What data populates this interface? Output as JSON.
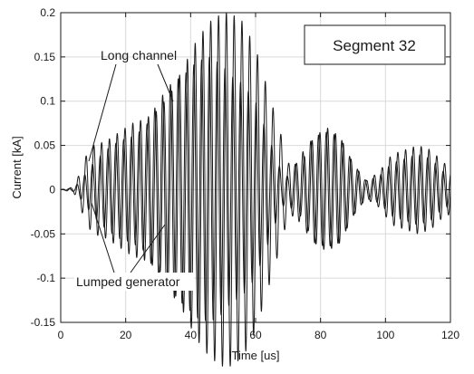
{
  "chart_data": {
    "type": "line",
    "xlabel": "Time [us]",
    "ylabel": "Current [kA]",
    "xlim": [
      0,
      120
    ],
    "ylim": [
      -0.15,
      0.2
    ],
    "xticks": [
      0,
      20,
      40,
      60,
      80,
      100,
      120
    ],
    "yticks": [
      -0.15,
      -0.1,
      -0.05,
      0,
      0.05,
      0.1,
      0.15,
      0.2
    ],
    "xtick_labels": [
      "0",
      "20",
      "40",
      "60",
      "80",
      "100",
      "120"
    ],
    "ytick_labels": [
      "-0.15",
      "-0.1",
      "-0.05",
      "0",
      "0.05",
      "0.1",
      "0.15",
      "0.2"
    ],
    "grid": true,
    "box_label": "Segment 32",
    "annotations": [
      {
        "text": "Long channel",
        "target": "series-1"
      },
      {
        "text": "Lumped generator",
        "target": "series-2"
      }
    ],
    "line_color": "#1a1a1a",
    "series": [
      {
        "name": "Long channel",
        "carrier_period_us": 2.4,
        "envelope_t": [
          0,
          4,
          6,
          8,
          10,
          14,
          18,
          22,
          26,
          30,
          34,
          38,
          42,
          46,
          50,
          52,
          56,
          60,
          64,
          68,
          70,
          74,
          78,
          82,
          86,
          90,
          94,
          98,
          102,
          106,
          110,
          114,
          118,
          120
        ],
        "envelope_amp": [
          0.0,
          0.003,
          0.02,
          0.04,
          0.05,
          0.055,
          0.065,
          0.075,
          0.08,
          0.09,
          0.11,
          0.14,
          0.17,
          0.19,
          0.2,
          0.2,
          0.19,
          0.16,
          0.11,
          0.06,
          0.03,
          0.03,
          0.06,
          0.07,
          0.06,
          0.03,
          0.01,
          0.02,
          0.04,
          0.045,
          0.05,
          0.045,
          0.03,
          0.028
        ]
      },
      {
        "name": "Lumped generator",
        "carrier_period_us": 2.4,
        "envelope_t": [
          0,
          4,
          6,
          8,
          10,
          14,
          18,
          22,
          26,
          30,
          34,
          38,
          42,
          46,
          50,
          52,
          56,
          60,
          64,
          68,
          70,
          74,
          78,
          82,
          86,
          90,
          94,
          98,
          102,
          106,
          110,
          114,
          118,
          120
        ],
        "envelope_amp": [
          0.0,
          0.002,
          0.01,
          0.02,
          0.03,
          0.045,
          0.055,
          0.06,
          0.07,
          0.1,
          0.12,
          0.13,
          0.145,
          0.15,
          0.14,
          0.13,
          0.12,
          0.1,
          0.06,
          0.02,
          0.015,
          0.04,
          0.06,
          0.065,
          0.06,
          0.03,
          0.01,
          0.015,
          0.03,
          0.035,
          0.04,
          0.035,
          0.02,
          0.02
        ]
      }
    ]
  }
}
